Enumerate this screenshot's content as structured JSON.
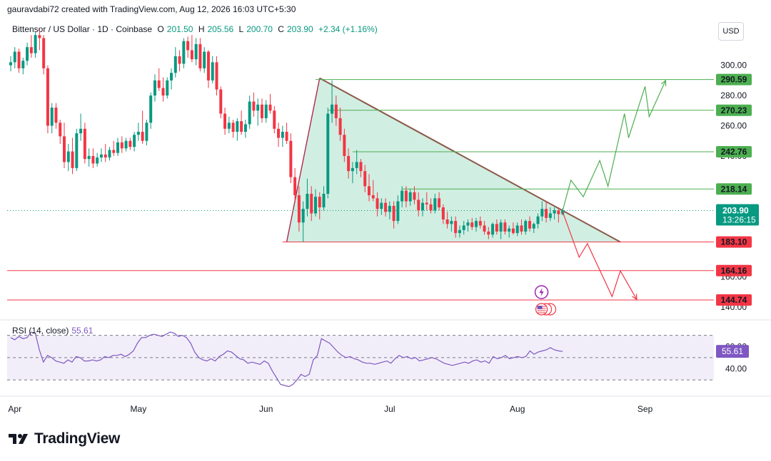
{
  "attribution": "gauravdabi72 created with TradingView.com, Aug 12, 2026 16:03 UTC+5:30",
  "legend": {
    "symbol": "Bittensor / US Dollar · 1D · Coinbase",
    "o_label": "O",
    "o_value": "201.50",
    "h_label": "H",
    "h_value": "205.56",
    "l_label": "L",
    "l_value": "200.70",
    "c_label": "C",
    "c_value": "203.90",
    "change": "+2.34 (+1.16%)"
  },
  "currency_button": "USD",
  "colors": {
    "up": "#089981",
    "down": "#f23645",
    "green_line": "#4caf50",
    "red_line": "#f23645",
    "triangle_fill": "#b9e5d2",
    "rsi": "#7e57c2"
  },
  "icons": {
    "event_icon": "lightning-icon",
    "flag_icon": "us-flag-icon"
  },
  "brand": {
    "name": "TradingView",
    "logo": "tradingview-logo-icon"
  },
  "chart_data": [
    {
      "type": "candlestick",
      "title": "Bittensor / US Dollar · 1D · Coinbase",
      "ylim": [
        132,
        330
      ],
      "y_ticks": [
        "300.00",
        "280.00",
        "260.00",
        "240.00",
        "200.00",
        "160.00",
        "140.00"
      ],
      "x_ticks": [
        "Apr",
        "May",
        "Jun",
        "Jul",
        "Aug",
        "Sep"
      ],
      "price_label": {
        "value": "203.90",
        "countdown": "13:26:15"
      },
      "levels": [
        {
          "value": 290.59,
          "label": "290.59",
          "color": "green"
        },
        {
          "value": 270.23,
          "label": "270.23",
          "color": "green"
        },
        {
          "value": 242.76,
          "label": "242.76",
          "color": "green"
        },
        {
          "value": 218.14,
          "label": "218.14",
          "color": "green"
        },
        {
          "value": 183.1,
          "label": "183.10",
          "color": "red"
        },
        {
          "value": 164.16,
          "label": "164.16",
          "color": "red"
        },
        {
          "value": 144.74,
          "label": "144.74",
          "color": "red"
        }
      ],
      "triangle": {
        "apex": [
          "2026-06-14",
          291.5
        ],
        "base_left": [
          "2026-06-06",
          183.1
        ],
        "base_right": [
          "2026-08-26",
          183.1
        ]
      },
      "bullish_path": [
        [
          "2026-08-12",
          204
        ],
        [
          "2026-08-14",
          224
        ],
        [
          "2026-08-17",
          213
        ],
        [
          "2026-08-21",
          237
        ],
        [
          "2026-08-23",
          220
        ],
        [
          "2026-08-27",
          268
        ],
        [
          "2026-08-28",
          252
        ],
        [
          "2026-09-01",
          286
        ],
        [
          "2026-09-02",
          266
        ],
        [
          "2026-09-06",
          290
        ]
      ],
      "bearish_path": [
        [
          "2026-08-12",
          203
        ],
        [
          "2026-08-16",
          173
        ],
        [
          "2026-08-18",
          182
        ],
        [
          "2026-08-24",
          147
        ],
        [
          "2026-08-26",
          164
        ],
        [
          "2026-08-30",
          145
        ]
      ],
      "candles": [
        [
          "2026-03-31",
          300,
          306,
          296,
          302
        ],
        [
          "2026-04-01",
          302,
          312,
          298,
          309
        ],
        [
          "2026-04-02",
          309,
          311,
          295,
          298
        ],
        [
          "2026-04-03",
          298,
          305,
          294,
          303
        ],
        [
          "2026-04-04",
          303,
          315,
          300,
          312
        ],
        [
          "2026-04-05",
          312,
          320,
          305,
          308
        ],
        [
          "2026-04-06",
          308,
          322,
          305,
          320
        ],
        [
          "2026-04-07",
          320,
          324,
          310,
          318
        ],
        [
          "2026-04-08",
          318,
          320,
          294,
          298
        ],
        [
          "2026-04-09",
          298,
          300,
          255,
          260
        ],
        [
          "2026-04-10",
          260,
          275,
          255,
          272
        ],
        [
          "2026-04-11",
          272,
          275,
          258,
          262
        ],
        [
          "2026-04-12",
          262,
          264,
          248,
          253
        ],
        [
          "2026-04-13",
          253,
          262,
          232,
          236
        ],
        [
          "2026-04-14",
          236,
          248,
          230,
          243
        ],
        [
          "2026-04-15",
          243,
          252,
          228,
          232
        ],
        [
          "2026-04-16",
          232,
          258,
          230,
          255
        ],
        [
          "2026-04-17",
          255,
          268,
          250,
          258
        ],
        [
          "2026-04-18",
          258,
          262,
          235,
          238
        ],
        [
          "2026-04-19",
          238,
          245,
          233,
          240
        ],
        [
          "2026-04-20",
          240,
          245,
          232,
          235
        ],
        [
          "2026-04-21",
          235,
          242,
          233,
          239
        ],
        [
          "2026-04-22",
          239,
          245,
          236,
          241
        ],
        [
          "2026-04-23",
          241,
          248,
          236,
          239
        ],
        [
          "2026-04-24",
          239,
          246,
          237,
          244
        ],
        [
          "2026-04-25",
          244,
          250,
          240,
          242
        ],
        [
          "2026-04-26",
          242,
          252,
          240,
          249
        ],
        [
          "2026-04-27",
          249,
          253,
          242,
          245
        ],
        [
          "2026-04-28",
          245,
          252,
          243,
          250
        ],
        [
          "2026-04-29",
          250,
          252,
          244,
          246
        ],
        [
          "2026-04-30",
          246,
          256,
          243,
          254
        ],
        [
          "2026-05-01",
          254,
          262,
          250,
          256
        ],
        [
          "2026-05-02",
          256,
          270,
          248,
          250
        ],
        [
          "2026-05-03",
          250,
          264,
          247,
          262
        ],
        [
          "2026-05-04",
          262,
          282,
          258,
          280
        ],
        [
          "2026-05-05",
          280,
          294,
          276,
          290
        ],
        [
          "2026-05-06",
          290,
          298,
          283,
          285
        ],
        [
          "2026-05-07",
          285,
          292,
          276,
          280
        ],
        [
          "2026-05-08",
          280,
          292,
          278,
          290
        ],
        [
          "2026-05-09",
          290,
          298,
          284,
          295
        ],
        [
          "2026-05-10",
          295,
          312,
          292,
          306
        ],
        [
          "2026-05-11",
          306,
          310,
          296,
          301
        ],
        [
          "2026-05-12",
          301,
          318,
          298,
          316
        ],
        [
          "2026-05-13",
          316,
          319,
          305,
          310
        ],
        [
          "2026-05-14",
          310,
          320,
          302,
          304
        ],
        [
          "2026-05-15",
          304,
          318,
          300,
          314
        ],
        [
          "2026-05-16",
          314,
          318,
          296,
          298
        ],
        [
          "2026-05-17",
          298,
          312,
          295,
          309
        ],
        [
          "2026-05-18",
          309,
          310,
          285,
          290
        ],
        [
          "2026-05-19",
          290,
          306,
          288,
          302
        ],
        [
          "2026-05-20",
          302,
          306,
          280,
          284
        ],
        [
          "2026-05-21",
          284,
          286,
          265,
          268
        ],
        [
          "2026-05-22",
          268,
          272,
          254,
          258
        ],
        [
          "2026-05-23",
          258,
          266,
          255,
          262
        ],
        [
          "2026-05-24",
          262,
          264,
          252,
          256
        ],
        [
          "2026-05-25",
          256,
          265,
          250,
          263
        ],
        [
          "2026-05-26",
          263,
          270,
          254,
          256
        ],
        [
          "2026-05-27",
          256,
          264,
          252,
          261
        ],
        [
          "2026-05-28",
          261,
          280,
          258,
          276
        ],
        [
          "2026-05-29",
          276,
          282,
          266,
          270
        ],
        [
          "2026-05-30",
          270,
          278,
          260,
          274
        ],
        [
          "2026-05-31",
          274,
          278,
          262,
          265
        ],
        [
          "2026-06-01",
          265,
          277,
          262,
          274
        ],
        [
          "2026-06-02",
          274,
          281,
          268,
          270
        ],
        [
          "2026-06-03",
          270,
          273,
          255,
          258
        ],
        [
          "2026-06-04",
          258,
          262,
          246,
          252
        ],
        [
          "2026-06-05",
          252,
          260,
          246,
          256
        ],
        [
          "2026-06-06",
          256,
          262,
          248,
          250
        ],
        [
          "2026-06-07",
          250,
          255,
          222,
          226
        ],
        [
          "2026-06-08",
          226,
          232,
          210,
          214
        ],
        [
          "2026-06-09",
          214,
          220,
          190,
          196
        ],
        [
          "2026-06-10",
          196,
          210,
          183,
          205
        ],
        [
          "2026-06-11",
          205,
          225,
          200,
          215
        ],
        [
          "2026-06-12",
          215,
          220,
          197,
          202
        ],
        [
          "2026-06-13",
          202,
          218,
          200,
          213
        ],
        [
          "2026-06-14",
          213,
          216,
          198,
          206
        ],
        [
          "2026-06-15",
          206,
          220,
          204,
          215
        ],
        [
          "2026-06-16",
          215,
          272,
          212,
          268
        ],
        [
          "2026-06-17",
          268,
          290,
          262,
          274
        ],
        [
          "2026-06-18",
          274,
          280,
          260,
          265
        ],
        [
          "2026-06-19",
          265,
          272,
          250,
          254
        ],
        [
          "2026-06-20",
          254,
          258,
          236,
          240
        ],
        [
          "2026-06-21",
          240,
          245,
          225,
          230
        ],
        [
          "2026-06-22",
          230,
          236,
          222,
          232
        ],
        [
          "2026-06-23",
          232,
          244,
          228,
          236
        ],
        [
          "2026-06-24",
          236,
          238,
          226,
          230
        ],
        [
          "2026-06-25",
          230,
          234,
          216,
          220
        ],
        [
          "2026-06-26",
          220,
          228,
          210,
          214
        ],
        [
          "2026-06-27",
          214,
          224,
          210,
          212
        ],
        [
          "2026-06-28",
          212,
          216,
          200,
          205
        ],
        [
          "2026-06-29",
          205,
          212,
          201,
          209
        ],
        [
          "2026-06-30",
          209,
          212,
          200,
          203
        ],
        [
          "2026-07-01",
          203,
          210,
          198,
          207
        ],
        [
          "2026-07-02",
          207,
          210,
          192,
          197
        ],
        [
          "2026-07-03",
          197,
          214,
          195,
          210
        ],
        [
          "2026-07-04",
          210,
          220,
          206,
          217
        ],
        [
          "2026-07-05",
          217,
          220,
          206,
          210
        ],
        [
          "2026-07-06",
          210,
          218,
          207,
          216
        ],
        [
          "2026-07-07",
          216,
          220,
          208,
          211
        ],
        [
          "2026-07-08",
          211,
          216,
          200,
          204
        ],
        [
          "2026-07-09",
          204,
          212,
          200,
          209
        ],
        [
          "2026-07-10",
          209,
          216,
          204,
          208
        ],
        [
          "2026-07-11",
          208,
          212,
          202,
          204
        ],
        [
          "2026-07-12",
          204,
          215,
          202,
          212
        ],
        [
          "2026-07-13",
          212,
          216,
          204,
          206
        ],
        [
          "2026-07-14",
          206,
          208,
          195,
          198
        ],
        [
          "2026-07-15",
          198,
          203,
          192,
          195
        ],
        [
          "2026-07-16",
          195,
          200,
          190,
          197
        ],
        [
          "2026-07-17",
          197,
          200,
          186,
          189
        ],
        [
          "2026-07-18",
          189,
          194,
          186,
          191
        ],
        [
          "2026-07-19",
          191,
          197,
          188,
          194
        ],
        [
          "2026-07-20",
          194,
          198,
          190,
          196
        ],
        [
          "2026-07-21",
          196,
          199,
          191,
          193
        ],
        [
          "2026-07-22",
          193,
          199,
          190,
          197
        ],
        [
          "2026-07-23",
          197,
          200,
          192,
          194
        ],
        [
          "2026-07-24",
          194,
          197,
          188,
          190
        ],
        [
          "2026-07-25",
          190,
          193,
          185,
          188
        ],
        [
          "2026-07-26",
          188,
          196,
          186,
          195
        ],
        [
          "2026-07-27",
          195,
          198,
          188,
          190
        ],
        [
          "2026-07-28",
          190,
          198,
          185,
          196
        ],
        [
          "2026-07-29",
          196,
          198,
          188,
          190
        ],
        [
          "2026-07-30",
          190,
          194,
          186,
          192
        ],
        [
          "2026-07-31",
          192,
          196,
          188,
          189
        ],
        [
          "2026-08-01",
          189,
          196,
          187,
          194
        ],
        [
          "2026-08-02",
          194,
          198,
          188,
          190
        ],
        [
          "2026-08-03",
          190,
          198,
          188,
          197
        ],
        [
          "2026-08-04",
          197,
          200,
          190,
          192
        ],
        [
          "2026-08-05",
          192,
          196,
          189,
          195
        ],
        [
          "2026-08-06",
          195,
          202,
          192,
          200
        ],
        [
          "2026-08-07",
          200,
          210,
          197,
          205
        ],
        [
          "2026-08-08",
          205,
          210,
          196,
          199
        ],
        [
          "2026-08-09",
          199,
          206,
          197,
          202
        ],
        [
          "2026-08-10",
          202,
          206,
          198,
          204
        ],
        [
          "2026-08-11",
          204,
          206,
          196,
          201.5
        ],
        [
          "2026-08-12",
          201.5,
          205.56,
          200.7,
          203.9
        ]
      ]
    },
    {
      "type": "line",
      "title": "RSI (14, close)",
      "value_label": "55.61",
      "ylim": [
        18,
        80
      ],
      "y_ticks": [
        "60.00",
        "40.00"
      ],
      "bands": [
        70,
        50,
        30
      ],
      "series": [
        {
          "values": [
            68,
            66,
            69,
            67,
            68,
            73,
            72,
            57,
            46,
            52,
            50,
            47,
            46,
            45,
            48,
            46,
            51,
            50,
            47,
            47,
            48,
            47,
            48,
            51,
            50,
            52,
            52,
            53,
            51,
            53,
            56,
            63,
            68,
            68,
            70,
            71,
            70,
            69,
            71,
            73,
            72,
            69,
            70,
            68,
            63,
            55,
            50,
            48,
            47,
            49,
            47,
            51,
            53,
            56,
            55,
            52,
            49,
            48,
            45,
            46,
            45,
            44,
            47,
            45,
            38,
            32,
            26,
            25,
            24,
            26,
            30,
            35,
            33,
            35,
            48,
            52,
            67,
            65,
            63,
            59,
            55,
            52,
            50,
            51,
            49,
            48,
            46,
            45,
            45,
            44,
            45,
            46,
            47,
            45,
            49,
            52,
            50,
            51,
            49,
            50,
            47,
            48,
            49,
            50,
            49,
            47,
            45,
            44,
            43,
            44,
            45,
            46,
            45,
            47,
            48,
            46,
            47,
            45,
            51,
            49,
            50,
            52,
            49,
            50,
            51,
            50,
            51,
            56,
            53,
            55,
            56,
            57,
            59,
            57,
            56,
            55.61
          ]
        }
      ]
    }
  ]
}
